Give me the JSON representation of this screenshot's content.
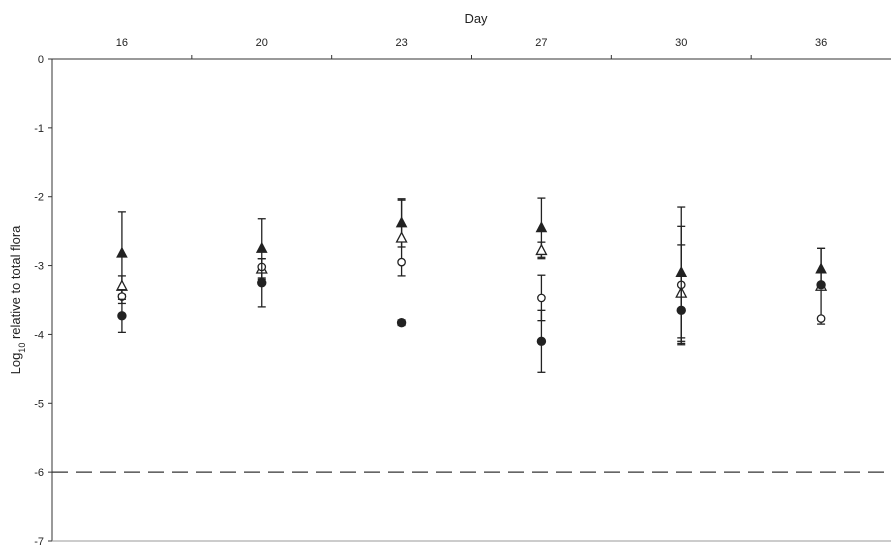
{
  "chart_data": {
    "type": "scatter",
    "title": "",
    "xlabel": "Day",
    "ylabel": "Log10 relative to total flora",
    "ylabel_main": "Log",
    "ylabel_sub": "10",
    "ylabel_rest": " relative to total flora",
    "categories": [
      "16",
      "20",
      "23",
      "27",
      "30",
      "36"
    ],
    "ylim": [
      -7,
      0
    ],
    "yticks": [
      "0",
      "-1",
      "-2",
      "-3",
      "-4",
      "-5",
      "-6",
      "-7"
    ],
    "grid": false,
    "legend": "none",
    "reference_line": {
      "y": -6,
      "style": "dashed"
    },
    "series": [
      {
        "marker": "filled-triangle",
        "values": [
          -2.82,
          -2.75,
          -2.38,
          -2.45,
          -3.1,
          -3.05
        ],
        "err": [
          0.6,
          0.43,
          0.35,
          0.43,
          0.95,
          0.3
        ]
      },
      {
        "marker": "open-triangle",
        "values": [
          -3.3,
          -3.05,
          -2.6,
          -2.78,
          -3.4,
          -3.3
        ],
        "err": [
          0.15,
          0.15,
          0.55,
          0.12,
          0.7,
          0.55
        ]
      },
      {
        "marker": "open-circle",
        "values": [
          -3.45,
          -3.02,
          -2.95,
          -3.47,
          -3.28,
          -3.77
        ],
        "err": [
          0.1,
          0.0,
          0.0,
          0.33,
          0.85,
          0.0
        ]
      },
      {
        "marker": "filled-circle",
        "values": [
          -3.73,
          -3.25,
          -3.83,
          -4.1,
          -3.65,
          -3.28
        ],
        "err": [
          0.24,
          0.35,
          0.04,
          0.45,
          0.5,
          0.0
        ]
      }
    ]
  }
}
